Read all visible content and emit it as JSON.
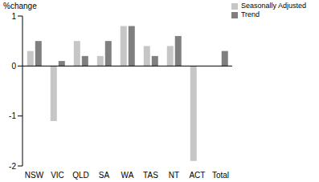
{
  "chart_data": {
    "type": "bar",
    "y_label": "%change",
    "categories": [
      "NSW",
      "VIC",
      "QLD",
      "SA",
      "WA",
      "TAS",
      "NT",
      "ACT",
      "Total"
    ],
    "series": [
      {
        "name": "Seasonally Adjusted",
        "color": "#c6c6c6",
        "values": [
          0.3,
          -1.1,
          0.5,
          0.2,
          0.8,
          0.4,
          0.4,
          -1.9,
          0.0
        ]
      },
      {
        "name": "Trend",
        "color": "#7f7f7f",
        "values": [
          0.5,
          0.1,
          0.2,
          0.5,
          0.8,
          0.2,
          0.6,
          0.0,
          0.3
        ]
      }
    ],
    "ylim": [
      -2,
      1
    ],
    "yticks": [
      -2,
      -1,
      0,
      1
    ],
    "grid": false,
    "legend": "upper right"
  }
}
